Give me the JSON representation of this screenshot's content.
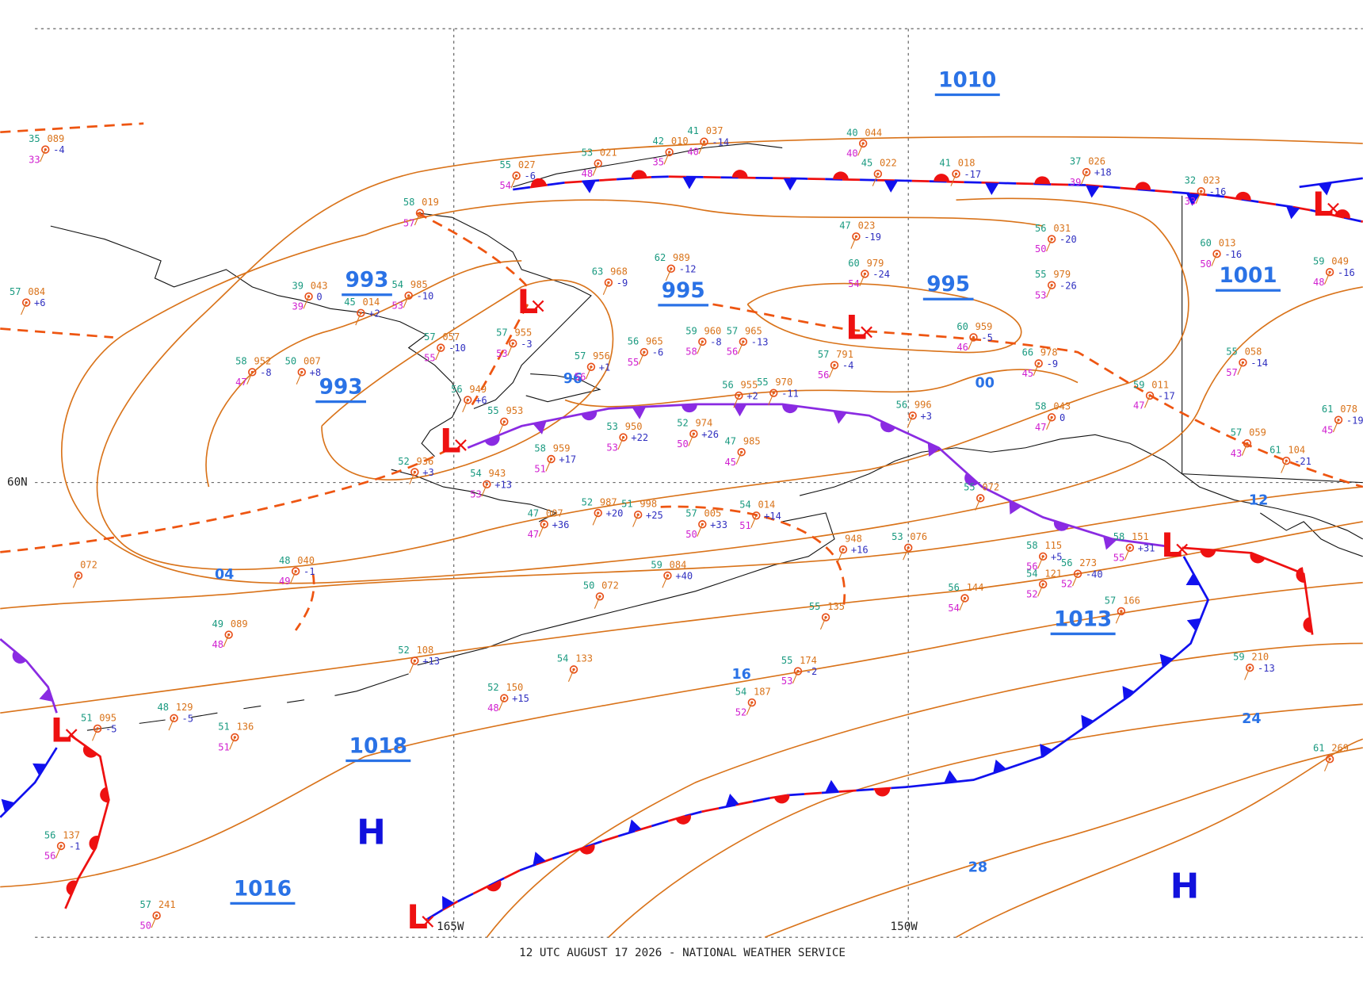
{
  "footer": "12 UTC AUGUST 17 2026 - NATIONAL WEATHER SERVICE",
  "grid_labels": [
    "60N",
    "165W",
    "150W"
  ],
  "isobar_labels": [
    "1010",
    "993",
    "995",
    "995",
    "1001",
    "993",
    "1018",
    "1016",
    "1013",
    "96",
    "00",
    "04",
    "16",
    "28",
    "24",
    "12"
  ],
  "pressure_centers": [
    "L",
    "L",
    "L",
    "L",
    "L",
    "L",
    "L",
    "H",
    "H"
  ],
  "stations": [
    {
      "temp": "35",
      "pressure": "089",
      "tendency": "-4",
      "dew": "33"
    },
    {
      "temp": "58",
      "pressure": "019",
      "dew": "57"
    },
    {
      "temp": "55",
      "pressure": "027",
      "tendency": "-6",
      "dew": "54"
    },
    {
      "temp": "53",
      "pressure": "021",
      "dew": "48"
    },
    {
      "temp": "42",
      "pressure": "010",
      "dew": "35"
    },
    {
      "temp": "41",
      "pressure": "037",
      "tendency": "-14",
      "dew": "40"
    },
    {
      "temp": "40",
      "pressure": "044",
      "dew": "40"
    },
    {
      "temp": "45",
      "pressure": "022"
    },
    {
      "temp": "41",
      "pressure": "018",
      "tendency": "-17"
    },
    {
      "temp": "37",
      "pressure": "026",
      "tendency": "+18",
      "dew": "39"
    },
    {
      "temp": "32",
      "pressure": "023",
      "tendency": "-16",
      "dew": "33"
    },
    {
      "temp": "47",
      "pressure": "023",
      "tendency": "-19"
    },
    {
      "temp": "56",
      "pressure": "031",
      "tendency": "-20",
      "dew": "50"
    },
    {
      "temp": "60",
      "pressure": "013",
      "tendency": "-16",
      "dew": "50"
    },
    {
      "temp": "59",
      "pressure": "049",
      "tendency": "-16",
      "dew": "48"
    },
    {
      "temp": "62",
      "pressure": "989",
      "tendency": "-12"
    },
    {
      "temp": "60",
      "pressure": "979",
      "tendency": "-24",
      "dew": "54"
    },
    {
      "temp": "55",
      "pressure": "979",
      "tendency": "-26",
      "dew": "53"
    },
    {
      "temp": "63",
      "pressure": "968",
      "tendency": "-9"
    },
    {
      "temp": "39",
      "pressure": "043",
      "tendency": "0",
      "dew": "39"
    },
    {
      "temp": "54",
      "pressure": "985",
      "tendency": "-10",
      "dew": "53"
    },
    {
      "temp": "57",
      "pressure": "084",
      "tendency": "+6"
    },
    {
      "temp": "45",
      "pressure": "014",
      "tendency": "+2"
    },
    {
      "temp": "57",
      "pressure": "057",
      "tendency": "-10",
      "dew": "55"
    },
    {
      "temp": "57",
      "pressure": "955",
      "tendency": "-3",
      "dew": "53"
    },
    {
      "temp": "56",
      "pressure": "965",
      "tendency": "-6",
      "dew": "55"
    },
    {
      "temp": "59",
      "pressure": "960",
      "tendency": "-8",
      "dew": "58"
    },
    {
      "temp": "57",
      "pressure": "965",
      "tendency": "-13",
      "dew": "56"
    },
    {
      "temp": "60",
      "pressure": "959",
      "tendency": "-5",
      "dew": "46"
    },
    {
      "temp": "66",
      "pressure": "978",
      "tendency": "-9",
      "dew": "45"
    },
    {
      "temp": "55",
      "pressure": "058",
      "tendency": "-14",
      "dew": "57"
    },
    {
      "temp": "57",
      "pressure": "791",
      "tendency": "-4",
      "dew": "56"
    },
    {
      "temp": "57",
      "pressure": "956",
      "tendency": "+1",
      "dew": "56"
    },
    {
      "temp": "58",
      "pressure": "952",
      "tendency": "-8",
      "dew": "47"
    },
    {
      "temp": "50",
      "pressure": "007",
      "tendency": "+8"
    },
    {
      "temp": "56",
      "pressure": "949",
      "tendency": "+6"
    },
    {
      "temp": "55",
      "pressure": "953"
    },
    {
      "temp": "56",
      "pressure": "955",
      "tendency": "+2"
    },
    {
      "temp": "55",
      "pressure": "970",
      "tendency": "-11"
    },
    {
      "temp": "56",
      "pressure": "996",
      "tendency": "+3"
    },
    {
      "temp": "59",
      "pressure": "011",
      "tendency": "-17",
      "dew": "47"
    },
    {
      "temp": "58",
      "pressure": "043",
      "tendency": "0",
      "dew": "47"
    },
    {
      "temp": "61",
      "pressure": "078",
      "tendency": "-19",
      "dew": "45"
    },
    {
      "temp": "53",
      "pressure": "950",
      "tendency": "+22",
      "dew": "53"
    },
    {
      "temp": "52",
      "pressure": "974",
      "tendency": "+26",
      "dew": "50"
    },
    {
      "temp": "47",
      "pressure": "985",
      "dew": "45"
    },
    {
      "temp": "58",
      "pressure": "959",
      "tendency": "+17",
      "dew": "51"
    },
    {
      "temp": "52",
      "pressure": "936",
      "tendency": "+3"
    },
    {
      "temp": "54",
      "pressure": "943",
      "tendency": "+13",
      "dew": "53"
    },
    {
      "temp": "57",
      "pressure": "059",
      "dew": "43"
    },
    {
      "temp": "61",
      "pressure": "104",
      "tendency": "-21"
    },
    {
      "temp": "55",
      "pressure": "072"
    },
    {
      "temp": "54",
      "pressure": "014",
      "tendency": "+14",
      "dew": "51"
    },
    {
      "temp": "47",
      "pressure": "007",
      "tendency": "+36",
      "dew": "47"
    },
    {
      "temp": "52",
      "pressure": "987",
      "tendency": "+20"
    },
    {
      "temp": "51",
      "pressure": "998",
      "tendency": "+25"
    },
    {
      "temp": "57",
      "pressure": "005",
      "tendency": "+33",
      "dew": "50"
    },
    {
      "temp": "48",
      "pressure": "040",
      "tendency": "-1",
      "dew": "49"
    },
    {
      "pressure": "072"
    },
    {
      "temp": "53",
      "pressure": "076"
    },
    {
      "pressure": "948",
      "tendency": "+16"
    },
    {
      "temp": "59",
      "pressure": "084",
      "tendency": "+40"
    },
    {
      "temp": "58",
      "pressure": "115",
      "tendency": "+5",
      "dew": "56"
    },
    {
      "temp": "56",
      "pressure": "273",
      "tendency": "-40",
      "dew": "52"
    },
    {
      "temp": "58",
      "pressure": "151",
      "tendency": "+31",
      "dew": "55"
    },
    {
      "temp": "56",
      "pressure": "144",
      "dew": "54"
    },
    {
      "temp": "54",
      "pressure": "121",
      "dew": "52"
    },
    {
      "temp": "57",
      "pressure": "166"
    },
    {
      "temp": "55",
      "pressure": "135"
    },
    {
      "temp": "49",
      "pressure": "089",
      "dew": "48"
    },
    {
      "temp": "50",
      "pressure": "072"
    },
    {
      "temp": "54",
      "pressure": "133"
    },
    {
      "temp": "55",
      "pressure": "174",
      "tendency": "-2",
      "dew": "53"
    },
    {
      "temp": "59",
      "pressure": "210",
      "tendency": "-13"
    },
    {
      "temp": "54",
      "pressure": "187",
      "dew": "52"
    },
    {
      "temp": "52",
      "pressure": "150",
      "tendency": "+15",
      "dew": "48"
    },
    {
      "temp": "51",
      "pressure": "136",
      "dew": "51"
    },
    {
      "temp": "51",
      "pressure": "095",
      "tendency": "-5"
    },
    {
      "temp": "48",
      "pressure": "129",
      "tendency": "-5"
    },
    {
      "temp": "52",
      "pressure": "108",
      "tendency": "+13"
    },
    {
      "temp": "61",
      "pressure": "269"
    },
    {
      "temp": "56",
      "pressure": "137",
      "tendency": "-1",
      "dew": "56"
    },
    {
      "temp": "57",
      "pressure": "241",
      "dew": "50"
    }
  ]
}
